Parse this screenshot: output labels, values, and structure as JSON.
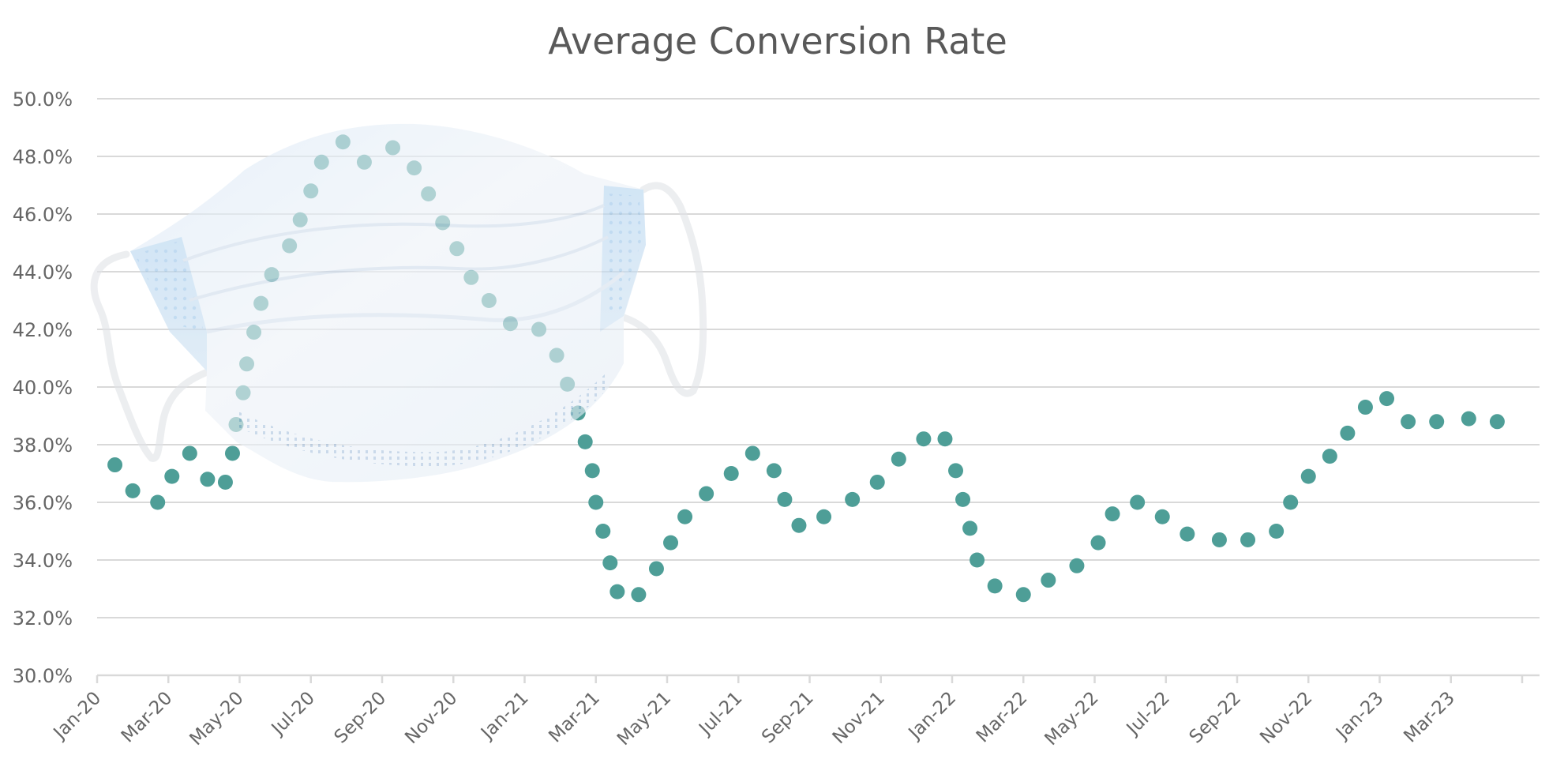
{
  "chart_data": {
    "type": "scatter",
    "title": "Average Conversion Rate",
    "xlabel": "",
    "ylabel": "",
    "ylim": [
      30,
      50
    ],
    "xlim_months_from_jan20": [
      0,
      40
    ],
    "y_tick_labels": [
      "30.0%",
      "32.0%",
      "34.0%",
      "36.0%",
      "38.0%",
      "40.0%",
      "42.0%",
      "44.0%",
      "46.0%",
      "48.0%",
      "50.0%"
    ],
    "y_tick_values": [
      30,
      32,
      34,
      36,
      38,
      40,
      42,
      44,
      46,
      48,
      50
    ],
    "x_tick_labels": [
      "Jan-20",
      "Mar-20",
      "May-20",
      "Jul-20",
      "Sep-20",
      "Nov-20",
      "Jan-21",
      "Mar-21",
      "May-21",
      "Jul-21",
      "Sep-21",
      "Nov-21",
      "Jan-22",
      "Mar-22",
      "May-22",
      "Jul-22",
      "Sep-22",
      "Nov-22",
      "Jan-23",
      "Mar-23"
    ],
    "x_tick_step_months": 2,
    "grid": true,
    "legend": "none",
    "marker_color": "#4e9e97",
    "decoration": "surgical-face-mask image overlaid on the 2020 peak",
    "series": [
      {
        "name": "Average Conversion Rate",
        "x_unit": "months since Jan-20",
        "y_unit": "percent",
        "points": [
          [
            0.5,
            37.3
          ],
          [
            1.0,
            36.4
          ],
          [
            1.7,
            36.0
          ],
          [
            2.1,
            36.9
          ],
          [
            2.6,
            37.7
          ],
          [
            3.1,
            36.8
          ],
          [
            3.6,
            36.7
          ],
          [
            3.8,
            37.7
          ],
          [
            3.9,
            38.7
          ],
          [
            4.1,
            39.8
          ],
          [
            4.2,
            40.8
          ],
          [
            4.4,
            41.9
          ],
          [
            4.6,
            42.9
          ],
          [
            4.9,
            43.9
          ],
          [
            5.4,
            44.9
          ],
          [
            5.7,
            45.8
          ],
          [
            6.0,
            46.8
          ],
          [
            6.3,
            47.8
          ],
          [
            6.9,
            48.5
          ],
          [
            7.5,
            47.8
          ],
          [
            8.3,
            48.3
          ],
          [
            8.9,
            47.6
          ],
          [
            9.3,
            46.7
          ],
          [
            9.7,
            45.7
          ],
          [
            10.1,
            44.8
          ],
          [
            10.5,
            43.8
          ],
          [
            11.0,
            43.0
          ],
          [
            11.6,
            42.2
          ],
          [
            12.4,
            42.0
          ],
          [
            12.9,
            41.1
          ],
          [
            13.2,
            40.1
          ],
          [
            13.5,
            39.1
          ],
          [
            13.7,
            38.1
          ],
          [
            13.9,
            37.1
          ],
          [
            14.0,
            36.0
          ],
          [
            14.2,
            35.0
          ],
          [
            14.4,
            33.9
          ],
          [
            14.6,
            32.9
          ],
          [
            15.2,
            32.8
          ],
          [
            15.7,
            33.7
          ],
          [
            16.1,
            34.6
          ],
          [
            16.5,
            35.5
          ],
          [
            17.1,
            36.3
          ],
          [
            17.8,
            37.0
          ],
          [
            18.4,
            37.7
          ],
          [
            19.0,
            37.1
          ],
          [
            19.3,
            36.1
          ],
          [
            19.7,
            35.2
          ],
          [
            20.4,
            35.5
          ],
          [
            21.2,
            36.1
          ],
          [
            21.9,
            36.7
          ],
          [
            22.5,
            37.5
          ],
          [
            23.2,
            38.2
          ],
          [
            23.8,
            38.2
          ],
          [
            24.1,
            37.1
          ],
          [
            24.3,
            36.1
          ],
          [
            24.5,
            35.1
          ],
          [
            24.7,
            34.0
          ],
          [
            25.2,
            33.1
          ],
          [
            26.0,
            32.8
          ],
          [
            26.7,
            33.3
          ],
          [
            27.5,
            33.8
          ],
          [
            28.1,
            34.6
          ],
          [
            28.5,
            35.6
          ],
          [
            29.2,
            36.0
          ],
          [
            29.9,
            35.5
          ],
          [
            30.6,
            34.9
          ],
          [
            31.5,
            34.7
          ],
          [
            32.3,
            34.7
          ],
          [
            33.1,
            35.0
          ],
          [
            33.5,
            36.0
          ],
          [
            34.0,
            36.9
          ],
          [
            34.6,
            37.6
          ],
          [
            35.1,
            38.4
          ],
          [
            35.6,
            39.3
          ],
          [
            36.2,
            39.6
          ],
          [
            36.8,
            38.8
          ],
          [
            37.6,
            38.8
          ],
          [
            38.5,
            38.9
          ],
          [
            39.3,
            38.8
          ]
        ]
      }
    ]
  }
}
